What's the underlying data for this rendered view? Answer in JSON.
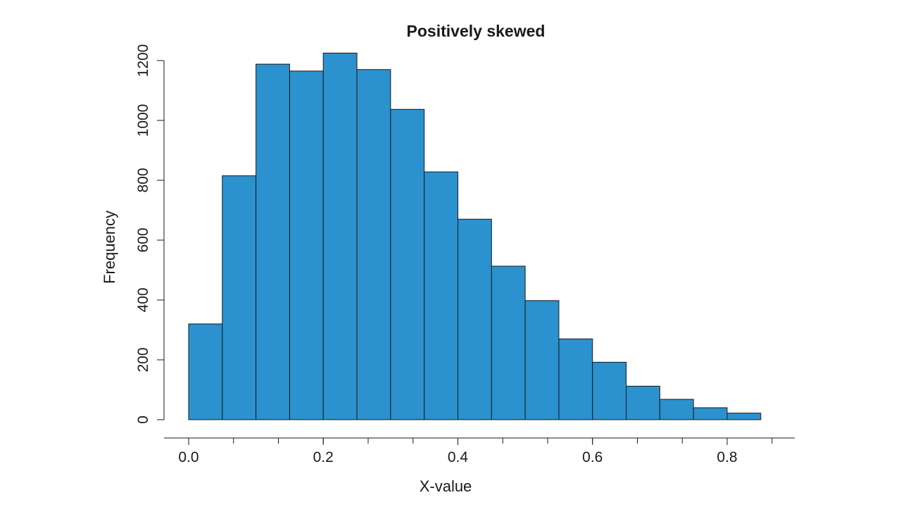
{
  "chart_data": {
    "type": "bar",
    "title": "Positively skewed",
    "xlabel": "X-value",
    "ylabel": "Frequency",
    "bin_edges": [
      0.0,
      0.05,
      0.1,
      0.15,
      0.2,
      0.25,
      0.3,
      0.35,
      0.4,
      0.45,
      0.5,
      0.55,
      0.6,
      0.65,
      0.7,
      0.75,
      0.8,
      0.85
    ],
    "values": [
      320,
      815,
      1188,
      1165,
      1225,
      1170,
      1037,
      828,
      670,
      513,
      398,
      270,
      192,
      112,
      68,
      40,
      22
    ],
    "xlim": [
      0.0,
      0.8
    ],
    "ylim": [
      0,
      1200
    ],
    "x_ticks": [
      "0.0",
      "0.2",
      "0.4",
      "0.6",
      "0.8"
    ],
    "y_ticks": [
      "0",
      "200",
      "400",
      "600",
      "800",
      "1000",
      "1200"
    ],
    "bar_color": "#2b91cf",
    "grid": false,
    "legend": "none"
  }
}
